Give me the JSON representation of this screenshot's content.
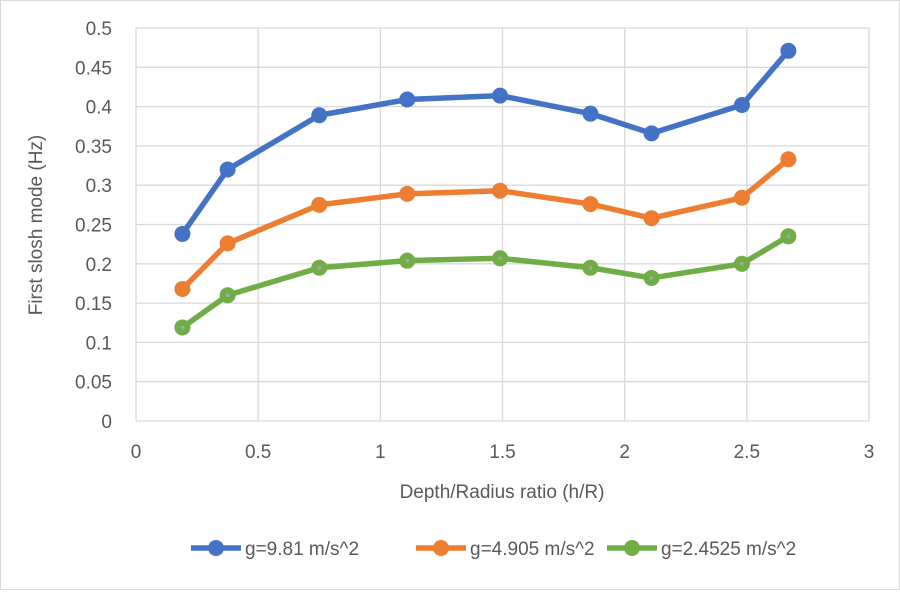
{
  "chart_data": {
    "type": "line",
    "title": "",
    "xlabel": "Depth/Radius ratio (h/R)",
    "ylabel": "First slosh mode (Hz)",
    "xlim": [
      0,
      3
    ],
    "ylim": [
      0,
      0.5
    ],
    "xticks": [
      "0",
      "0.5",
      "1",
      "1.5",
      "2",
      "2.5",
      "3"
    ],
    "yticks": [
      "0",
      "0.05",
      "0.1",
      "0.15",
      "0.2",
      "0.25",
      "0.3",
      "0.35",
      "0.4",
      "0.45",
      "0.5"
    ],
    "grid": true,
    "legend_position": "bottom",
    "x": [
      0.19,
      0.375,
      0.75,
      1.11,
      1.49,
      1.86,
      2.11,
      2.48,
      2.67
    ],
    "series": [
      {
        "name": "g=9.81 m/s^2",
        "color": "#4472C4",
        "values": [
          0.238,
          0.32,
          0.389,
          0.409,
          0.414,
          0.391,
          0.366,
          0.402,
          0.471
        ]
      },
      {
        "name": "g=4.905 m/s^2",
        "color": "#ED7D31",
        "values": [
          0.168,
          0.226,
          0.275,
          0.289,
          0.293,
          0.276,
          0.258,
          0.284,
          0.333
        ]
      },
      {
        "name": "g=2.4525 m/s^2",
        "color": "#70AD47",
        "values": [
          0.119,
          0.16,
          0.195,
          0.204,
          0.207,
          0.195,
          0.182,
          0.2,
          0.235
        ]
      }
    ]
  }
}
